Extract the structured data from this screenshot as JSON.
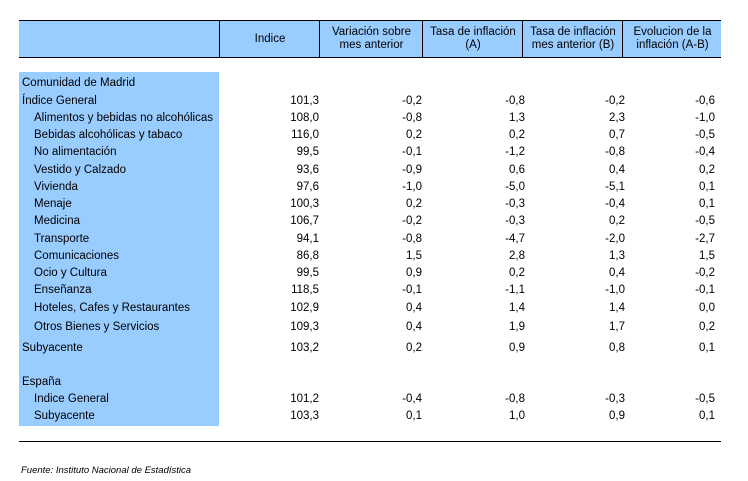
{
  "header": {
    "columns": [
      "",
      "Indice",
      "Variación sobre mes anterior",
      "Tasa de inflación (A)",
      "Tasa de inflación mes anterior (B)",
      "Evolucion de la inflación (A-B)"
    ],
    "col1": "Indice",
    "col2_l1": "Variación sobre",
    "col2_l2": "mes anterior",
    "col3_l1": "Tasa de inflación",
    "col3_l2": "(A)",
    "col4_l1": "Tasa de inflación",
    "col4_l2": "mes anterior (B)",
    "col5_l1": "Evolucion de la",
    "col5_l2": "inflación (A-B)"
  },
  "rows": [
    {
      "label": "Comunidad de Madrid",
      "values": [
        "",
        "",
        "",
        "",
        ""
      ]
    },
    {
      "label": "Índice General",
      "values": [
        "101,3",
        "-0,2",
        "-0,8",
        "-0,2",
        "-0,6"
      ]
    },
    {
      "label": "Alimentos y bebidas no alcohólicas",
      "values": [
        "108,0",
        "-0,8",
        "1,3",
        "2,3",
        "-1,0"
      ]
    },
    {
      "label": "Bebidas alcohólicas y tabaco",
      "values": [
        "116,0",
        "0,2",
        "0,2",
        "0,7",
        "-0,5"
      ]
    },
    {
      "label": "No alimentación",
      "values": [
        "99,5",
        "-0,1",
        "-1,2",
        "-0,8",
        "-0,4"
      ]
    },
    {
      "label": "Vestido y Calzado",
      "values": [
        "93,6",
        "-0,9",
        "0,6",
        "0,4",
        "0,2"
      ]
    },
    {
      "label": "Vivienda",
      "values": [
        "97,6",
        "-1,0",
        "-5,0",
        "-5,1",
        "0,1"
      ]
    },
    {
      "label": "Menaje",
      "values": [
        "100,3",
        "0,2",
        "-0,3",
        "-0,4",
        "0,1"
      ]
    },
    {
      "label": "Medicina",
      "values": [
        "106,7",
        "-0,2",
        "-0,3",
        "0,2",
        "-0,5"
      ]
    },
    {
      "label": "Transporte",
      "values": [
        "94,1",
        "-0,8",
        "-4,7",
        "-2,0",
        "-2,7"
      ]
    },
    {
      "label": "Comunicaciones",
      "values": [
        "86,8",
        "1,5",
        "2,8",
        "1,3",
        "1,5"
      ]
    },
    {
      "label": "Ocio y Cultura",
      "values": [
        "99,5",
        "0,9",
        "0,2",
        "0,4",
        "-0,2"
      ]
    },
    {
      "label": "Enseñanza",
      "values": [
        "118,5",
        "-0,1",
        "-1,1",
        "-1,0",
        "-0,1"
      ]
    },
    {
      "label": "Hoteles, Cafes y Restaurantes",
      "values": [
        "102,9",
        "0,4",
        "1,4",
        "1,4",
        "0,0"
      ]
    },
    {
      "label": "Otros Bienes y Servicios",
      "values": [
        "109,3",
        "0,4",
        "1,9",
        "1,7",
        "0,2"
      ]
    },
    {
      "label": "Subyacente",
      "values": [
        "103,2",
        "0,2",
        "0,9",
        "0,8",
        "0,1"
      ]
    },
    {
      "label": "España",
      "values": [
        "",
        "",
        "",
        "",
        ""
      ]
    },
    {
      "label": "Indice General",
      "values": [
        "101,2",
        "-0,4",
        "-0,8",
        "-0,3",
        "-0,5"
      ]
    },
    {
      "label": "Subyacente",
      "values": [
        "103,3",
        "0,1",
        "1,0",
        "0,9",
        "0,1"
      ]
    }
  ],
  "footer": {
    "source": "Fuente: Instituto Nacional de Estadística"
  }
}
